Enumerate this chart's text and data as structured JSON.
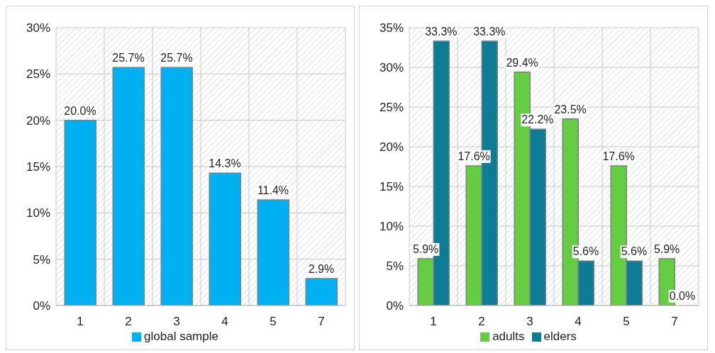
{
  "chart_data": [
    {
      "type": "bar",
      "categories": [
        "1",
        "2",
        "3",
        "4",
        "5",
        "7"
      ],
      "series": [
        {
          "name": "global sample",
          "color": "#00b0f0",
          "values": [
            20.0,
            25.7,
            25.7,
            14.3,
            11.4,
            2.9
          ],
          "value_labels": [
            "20.0%",
            "25.7%",
            "25.7%",
            "14.3%",
            "11.4%",
            "2.9%"
          ]
        }
      ],
      "ylim": [
        0,
        30
      ],
      "yticks": [
        {
          "value": 0,
          "label": "0%"
        },
        {
          "value": 5,
          "label": "5%"
        },
        {
          "value": 10,
          "label": "10%"
        },
        {
          "value": 15,
          "label": "15%"
        },
        {
          "value": 20,
          "label": "20%"
        },
        {
          "value": 25,
          "label": "25%"
        },
        {
          "value": 30,
          "label": "30%"
        }
      ],
      "grid": true,
      "legend": "bottom"
    },
    {
      "type": "bar",
      "categories": [
        "1",
        "2",
        "3",
        "4",
        "5",
        "7"
      ],
      "series": [
        {
          "name": "adults",
          "color": "#66cc44",
          "values": [
            5.9,
            17.6,
            29.4,
            23.5,
            17.6,
            5.9
          ],
          "value_labels": [
            "5.9%",
            "17.6%",
            "29.4%",
            "23.5%",
            "17.6%",
            "5.9%"
          ]
        },
        {
          "name": "elders",
          "color": "#0e7c95",
          "values": [
            33.3,
            33.3,
            22.2,
            5.6,
            5.6,
            0.0
          ],
          "value_labels": [
            "33.3%",
            "33.3%",
            "22.2%",
            "5.6%",
            "5.6%",
            "0.0%"
          ]
        }
      ],
      "ylim": [
        0,
        35
      ],
      "yticks": [
        {
          "value": 0,
          "label": "0%"
        },
        {
          "value": 5,
          "label": "5%"
        },
        {
          "value": 10,
          "label": "10%"
        },
        {
          "value": 15,
          "label": "15%"
        },
        {
          "value": 20,
          "label": "20%"
        },
        {
          "value": 25,
          "label": "25%"
        },
        {
          "value": 30,
          "label": "30%"
        },
        {
          "value": 35,
          "label": "35%"
        }
      ],
      "grid": true,
      "legend": "bottom"
    }
  ]
}
